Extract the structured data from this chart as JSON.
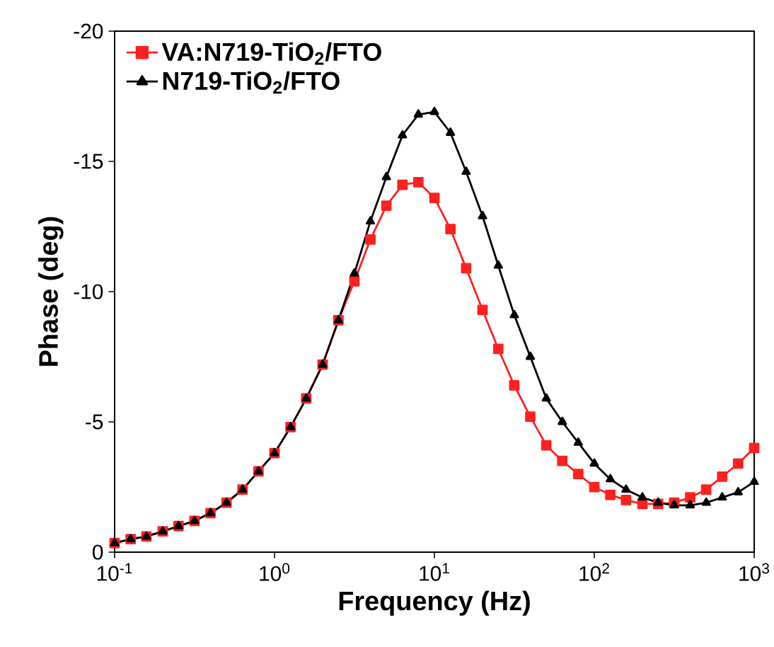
{
  "chart_data": {
    "type": "line",
    "xlabel": "Frequency (Hz)",
    "ylabel": "Phase (deg)",
    "log": "x",
    "xlim": [
      0.1,
      1000
    ],
    "ylim": [
      0,
      -20
    ],
    "xticks": [
      {
        "value": 0.1,
        "label": "10$^{-1}$"
      },
      {
        "value": 1,
        "label": "10$^{0}$"
      },
      {
        "value": 10,
        "label": "10$^{1}$"
      },
      {
        "value": 100,
        "label": "10$^{2}$"
      },
      {
        "value": 1000,
        "label": "10$^{3}$"
      }
    ],
    "yticks": [
      0,
      -5,
      -10,
      -15,
      -20
    ],
    "x": [
      0.1,
      0.126,
      0.158,
      0.2,
      0.251,
      0.316,
      0.398,
      0.501,
      0.631,
      0.794,
      1,
      1.26,
      1.58,
      2,
      2.51,
      3.16,
      3.98,
      5.01,
      6.31,
      7.94,
      10,
      12.6,
      15.8,
      20,
      25.1,
      31.6,
      39.8,
      50.1,
      63.1,
      79.4,
      100,
      126,
      158,
      200,
      251,
      316,
      398,
      501,
      631,
      794,
      1000
    ],
    "series": [
      {
        "name": "VA:N719-TiO$_{2}$/FTO",
        "color": "#ff2020",
        "marker": "square",
        "values": [
          -0.35,
          -0.5,
          -0.6,
          -0.8,
          -1.0,
          -1.2,
          -1.5,
          -1.9,
          -2.4,
          -3.1,
          -3.8,
          -4.8,
          -5.9,
          -7.2,
          -8.9,
          -10.4,
          -12.0,
          -13.3,
          -14.1,
          -14.2,
          -13.6,
          -12.4,
          -10.9,
          -9.3,
          -7.8,
          -6.4,
          -5.2,
          -4.1,
          -3.5,
          -3.0,
          -2.5,
          -2.2,
          -2.0,
          -1.85,
          -1.85,
          -1.9,
          -2.1,
          -2.4,
          -2.9,
          -3.4,
          -4.0
        ]
      },
      {
        "name": "N719-TiO$_{2}$/FTO",
        "color": "#000000",
        "marker": "triangle",
        "values": [
          -0.35,
          -0.5,
          -0.6,
          -0.8,
          -1.0,
          -1.2,
          -1.5,
          -1.9,
          -2.4,
          -3.1,
          -3.8,
          -4.8,
          -5.9,
          -7.2,
          -8.9,
          -10.7,
          -12.7,
          -14.4,
          -16.0,
          -16.8,
          -16.9,
          -16.1,
          -14.6,
          -12.9,
          -11.0,
          -9.1,
          -7.5,
          -5.9,
          -5.0,
          -4.2,
          -3.4,
          -2.8,
          -2.4,
          -2.1,
          -1.9,
          -1.8,
          -1.8,
          -1.9,
          -2.1,
          -2.3,
          -2.7
        ]
      }
    ],
    "legend": "top left",
    "line_style": "solid",
    "grid": false
  }
}
